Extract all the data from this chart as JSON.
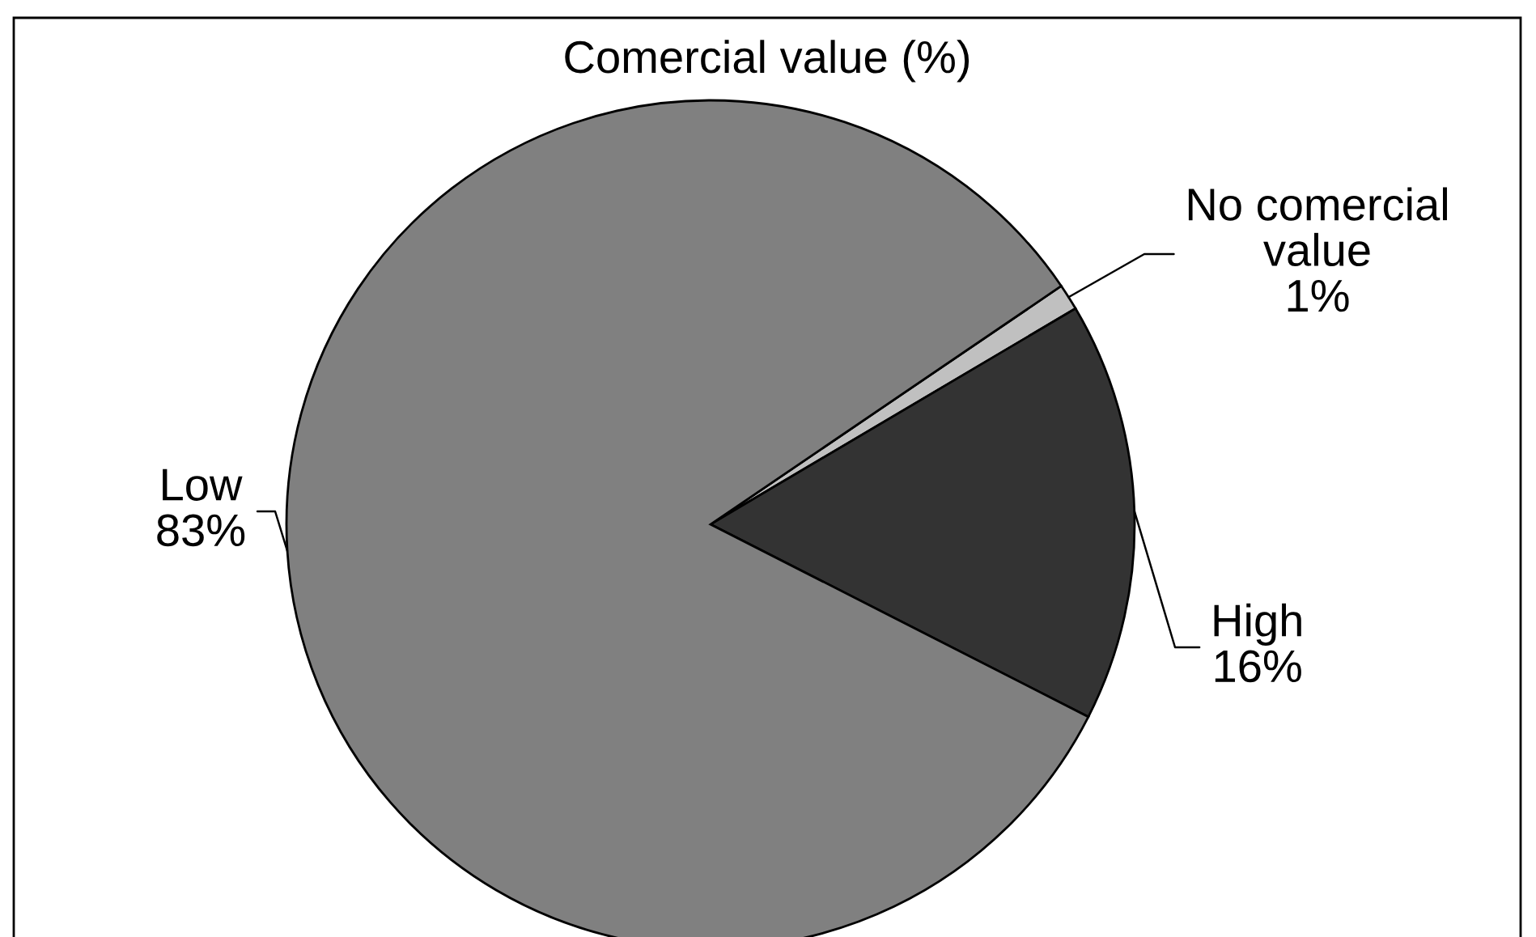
{
  "chart_data": {
    "type": "pie",
    "title": "Comercial value (%)",
    "categories": [
      "No comercial\nvalue",
      "High",
      "Low"
    ],
    "values": [
      1,
      16,
      83
    ],
    "value_labels": [
      "1%",
      "16%",
      "83%"
    ],
    "colors": [
      "#c0c0c0",
      "#333333",
      "#808080"
    ]
  }
}
